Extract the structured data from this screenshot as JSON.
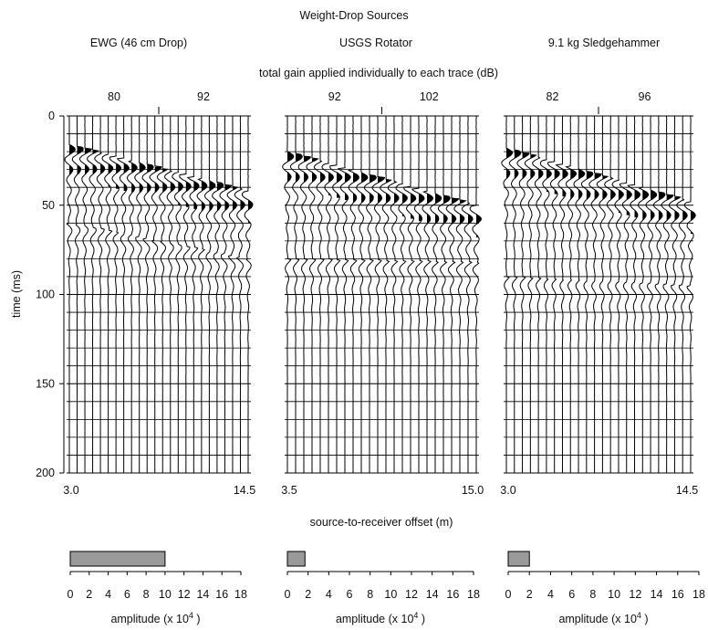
{
  "title": "Weight-Drop Sources",
  "gain_caption": "total gain applied individually to each trace (dB)",
  "offset_axis_label": "source-to-receiver offset (m)",
  "time_axis": {
    "label": "time (ms)",
    "ticks": [
      "0",
      "50",
      "100",
      "150",
      "200"
    ],
    "range": [
      0,
      200
    ]
  },
  "colors": {
    "trace": "#000000",
    "grid": "#000000",
    "bar_fill": "#9a9a9a"
  },
  "chart_data": [
    {
      "type": "seismogram",
      "title": "EWG (46 cm Drop)",
      "gain_labels": [
        "80",
        "92"
      ],
      "offset_range": [
        3.0,
        14.5
      ],
      "offset_tick_labels": [
        "3.0",
        "14.5"
      ],
      "trace_count": 24,
      "first_arrival_ms": [
        16,
        42
      ],
      "late_arrival_ms": [
        60,
        80
      ]
    },
    {
      "type": "seismogram",
      "title": "USGS Rotator",
      "gain_labels": [
        "92",
        "102"
      ],
      "offset_range": [
        3.5,
        15.0
      ],
      "offset_tick_labels": [
        "3.5",
        "15.0"
      ],
      "trace_count": 24,
      "first_arrival_ms": [
        20,
        50
      ],
      "late_arrival_ms": [
        80,
        82
      ]
    },
    {
      "type": "seismogram",
      "title": "9.1 kg Sledgehammer",
      "gain_labels": [
        "82",
        "96"
      ],
      "offset_range": [
        3.0,
        14.5
      ],
      "offset_tick_labels": [
        "3.0",
        "14.5"
      ],
      "trace_count": 24,
      "first_arrival_ms": [
        18,
        48
      ],
      "late_arrival_ms": [
        90,
        95
      ]
    },
    {
      "type": "bar",
      "source": "EWG (46 cm Drop)",
      "value": 10,
      "xlim": [
        0,
        18
      ],
      "tick_labels": [
        "0",
        "2",
        "4",
        "6",
        "8",
        "10",
        "12",
        "14",
        "16",
        "18"
      ],
      "xlabel": "amplitude (x 10",
      "xlabel_exponent": "4",
      "xlabel_close": ")"
    },
    {
      "type": "bar",
      "source": "USGS Rotator",
      "value": 1.7,
      "xlim": [
        0,
        18
      ],
      "tick_labels": [
        "0",
        "2",
        "4",
        "6",
        "8",
        "10",
        "12",
        "14",
        "16",
        "18"
      ],
      "xlabel": "amplitude (x 10",
      "xlabel_exponent": "4",
      "xlabel_close": ")"
    },
    {
      "type": "bar",
      "source": "9.1 kg Sledgehammer",
      "value": 2,
      "xlim": [
        0,
        18
      ],
      "tick_labels": [
        "0",
        "2",
        "4",
        "6",
        "8",
        "10",
        "12",
        "14",
        "16",
        "18"
      ],
      "xlabel": "amplitude (x 10",
      "xlabel_exponent": "4",
      "xlabel_close": ")"
    }
  ]
}
